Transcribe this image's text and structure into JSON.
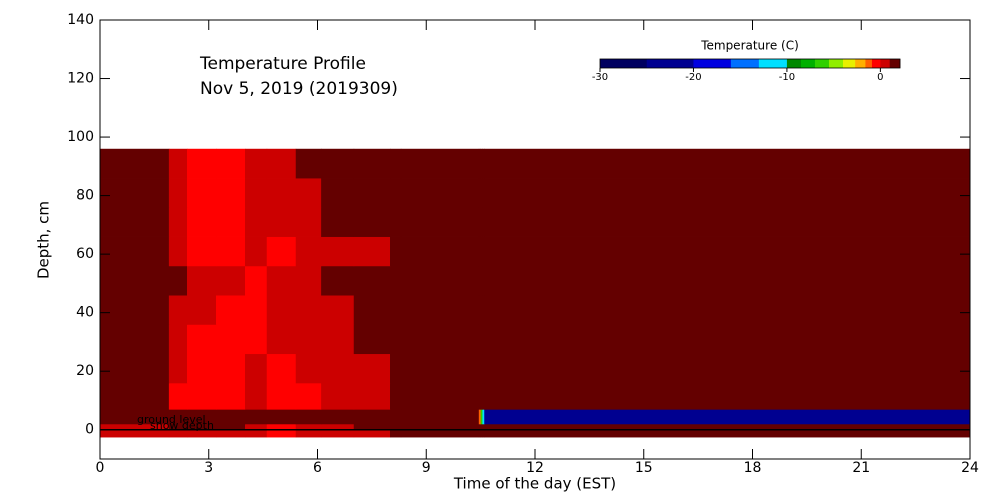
{
  "chart_data": {
    "type": "heatmap",
    "title": "Temperature Profile",
    "subtitle": "Nov  5, 2019 (2019309)",
    "x_label": "Time of the day (EST)",
    "y_label": "Depth, cm",
    "annotations": [
      "ground level",
      "snow depth"
    ],
    "reference_line": 0,
    "xlim": [
      0,
      24
    ],
    "xticks": [
      0,
      3,
      6,
      9,
      12,
      15,
      18,
      21,
      24
    ],
    "ylim": [
      -10,
      140
    ],
    "yticks": [
      0,
      20,
      40,
      60,
      80,
      100,
      120,
      140
    ],
    "x_edges": [
      0,
      1.9,
      2.4,
      3.2,
      4.0,
      4.6,
      5.4,
      6.1,
      7.0,
      8.0,
      8.3,
      10.45,
      10.5,
      10.55,
      10.6,
      24
    ],
    "y_edges": [
      -2.5,
      0,
      2,
      7,
      16,
      26,
      36,
      46,
      56,
      66,
      76,
      86,
      96
    ],
    "z": [
      [
        0.5,
        0.5,
        0.5,
        0.5,
        0.5,
        -0.4,
        0.5,
        0.5,
        0.5,
        1.5,
        1.5,
        1.5,
        1.5,
        1.5,
        1.5
      ],
      [
        0.5,
        1.5,
        1.5,
        1.5,
        0.5,
        -0.4,
        0.5,
        0.5,
        1.5,
        1.5,
        1.5,
        1.5,
        1.5,
        1.5,
        1.5
      ],
      [
        1.5,
        1.5,
        1.5,
        1.5,
        1.5,
        1.5,
        1.5,
        1.5,
        1.5,
        1.5,
        1.5,
        -1.5,
        -6,
        -12,
        -22
      ],
      [
        1.5,
        -0.4,
        -0.4,
        -0.4,
        0.5,
        -0.4,
        -0.4,
        0.5,
        0.5,
        1.5,
        1.5,
        1.5,
        1.5,
        1.5,
        1.5
      ],
      [
        1.5,
        0.5,
        -0.4,
        -0.4,
        0.5,
        -0.4,
        0.5,
        0.5,
        0.5,
        1.5,
        1.5,
        1.5,
        1.5,
        1.5,
        1.5
      ],
      [
        1.5,
        0.5,
        -0.4,
        -0.4,
        -0.4,
        0.5,
        0.5,
        0.5,
        1.5,
        1.5,
        1.5,
        1.5,
        1.5,
        1.5,
        1.5
      ],
      [
        1.5,
        0.5,
        0.5,
        -0.4,
        -0.4,
        0.5,
        0.5,
        0.5,
        1.5,
        1.5,
        1.5,
        1.5,
        1.5,
        1.5,
        1.5
      ],
      [
        1.5,
        1.5,
        0.5,
        0.5,
        -0.4,
        0.5,
        0.5,
        1.5,
        1.5,
        1.5,
        1.5,
        1.5,
        1.5,
        1.5,
        1.5
      ],
      [
        1.5,
        0.5,
        -0.4,
        -0.4,
        0.5,
        -0.4,
        0.5,
        0.5,
        0.5,
        1.5,
        1.5,
        1.5,
        1.5,
        1.5,
        1.5
      ],
      [
        1.5,
        0.5,
        -0.4,
        -0.4,
        0.5,
        0.5,
        0.5,
        1.5,
        1.5,
        1.5,
        1.5,
        1.5,
        1.5,
        1.5,
        1.5
      ],
      [
        1.5,
        0.5,
        -0.4,
        -0.4,
        0.5,
        0.5,
        0.5,
        1.5,
        1.5,
        1.5,
        1.5,
        1.5,
        1.5,
        1.5,
        1.5
      ],
      [
        1.5,
        0.5,
        -0.4,
        -0.4,
        0.5,
        0.5,
        1.5,
        1.5,
        1.5,
        1.5,
        1.5,
        1.5,
        1.5,
        1.5,
        1.5
      ]
    ],
    "colorbar": {
      "title": "Temperature (C)",
      "levels": [
        -30,
        -25,
        -20,
        -16,
        -13,
        -10,
        -8.5,
        -7,
        -5.5,
        -4,
        -2.7,
        -1.6,
        -0.9,
        0,
        1,
        2.1
      ],
      "colors": [
        "#000060",
        "#000090",
        "#0000e0",
        "#0070ff",
        "#00e0ff",
        "#008800",
        "#00b000",
        "#30d000",
        "#90ee00",
        "#e8f000",
        "#ffb000",
        "#ff6000",
        "#ff0000",
        "#cc0000",
        "#640000"
      ],
      "ticks": [
        -30,
        -20,
        -10,
        0
      ]
    }
  }
}
